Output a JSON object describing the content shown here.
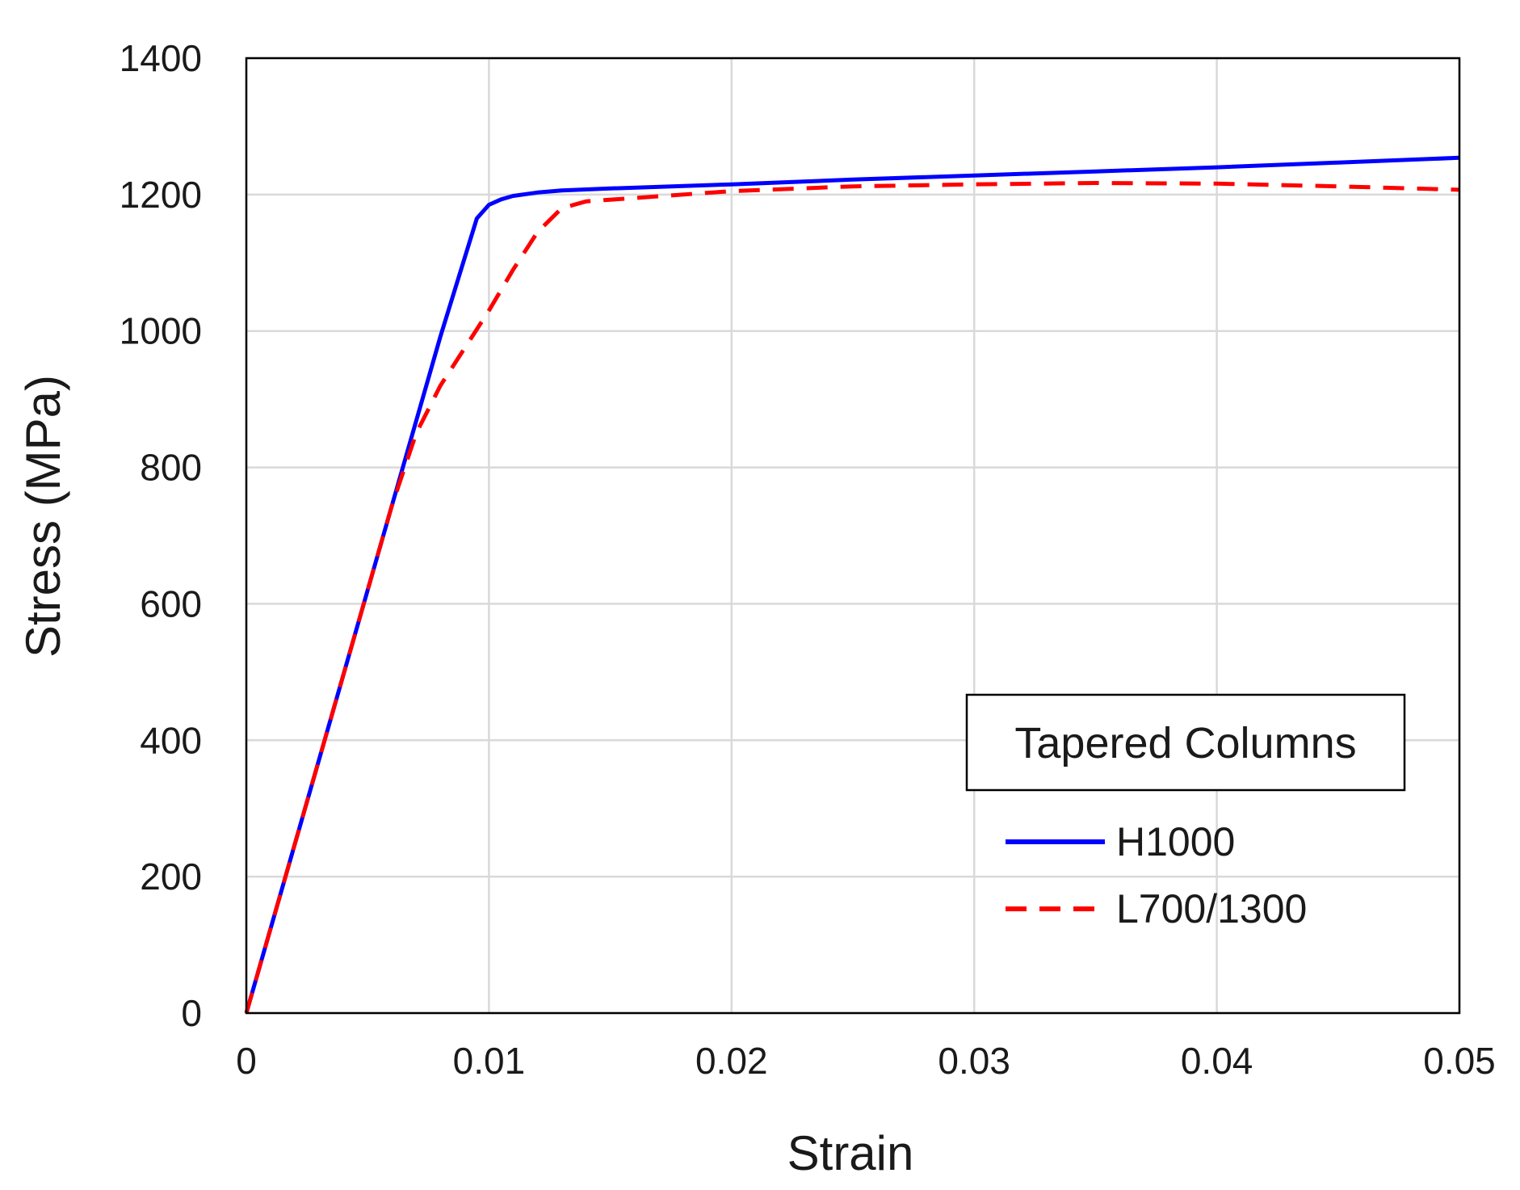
{
  "chart_data": {
    "type": "line",
    "title": "",
    "xlabel": "Strain",
    "ylabel": "Stress (MPa)",
    "xlim": [
      0,
      0.05
    ],
    "ylim": [
      0,
      1400
    ],
    "x_ticks": [
      0,
      0.01,
      0.02,
      0.03,
      0.04,
      0.05
    ],
    "x_tick_labels": [
      "0",
      "0.01",
      "0.02",
      "0.03",
      "0.04",
      "0.05"
    ],
    "y_ticks": [
      0,
      200,
      400,
      600,
      800,
      1000,
      1200,
      1400
    ],
    "y_tick_labels": [
      "0",
      "200",
      "400",
      "600",
      "800",
      "1000",
      "1200",
      "1400"
    ],
    "grid": true,
    "legend": {
      "title": "Tapered Columns",
      "placement": "bottom-right"
    },
    "series": [
      {
        "name": "H1000",
        "color": "#0000ff",
        "style": "solid",
        "x": [
          0,
          0.002,
          0.004,
          0.006,
          0.008,
          0.0095,
          0.01,
          0.0105,
          0.011,
          0.012,
          0.013,
          0.015,
          0.02,
          0.025,
          0.03,
          0.035,
          0.04,
          0.045,
          0.05
        ],
        "y": [
          0,
          248,
          496,
          744,
          992,
          1165,
          1185,
          1193,
          1198,
          1203,
          1206,
          1209,
          1215,
          1222,
          1228,
          1234,
          1240,
          1247,
          1254
        ]
      },
      {
        "name": "L700/1300",
        "color": "#ff0000",
        "style": "dashed",
        "x": [
          0,
          0.002,
          0.004,
          0.006,
          0.007,
          0.008,
          0.009,
          0.01,
          0.011,
          0.012,
          0.013,
          0.014,
          0.016,
          0.02,
          0.025,
          0.03,
          0.035,
          0.04,
          0.045,
          0.05
        ],
        "y": [
          0,
          248,
          496,
          744,
          850,
          920,
          975,
          1030,
          1090,
          1145,
          1180,
          1190,
          1195,
          1205,
          1212,
          1215,
          1217,
          1216,
          1212,
          1207
        ]
      }
    ]
  }
}
